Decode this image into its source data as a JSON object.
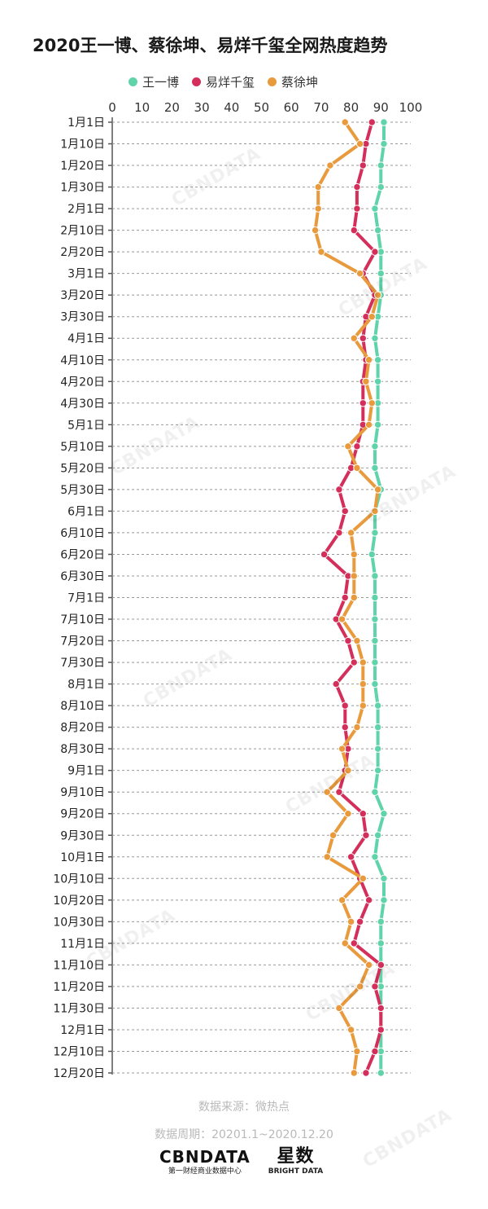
{
  "colors": {
    "wang": "#5fd3a9",
    "yi": "#d42e5b",
    "cai": "#e89a3c"
  },
  "legend": [
    {
      "label": "王一博",
      "color": "#5fd3a9"
    },
    {
      "label": "易烊千玺",
      "color": "#d42e5b"
    },
    {
      "label": "蔡徐坤",
      "color": "#e89a3c"
    }
  ],
  "chart_data": {
    "type": "line",
    "title": "2020王一博、蔡徐坤、易烊千玺全网热度趋势",
    "orientation": "horizontal",
    "xlim": [
      0,
      100
    ],
    "xticks": [
      0,
      10,
      20,
      30,
      40,
      50,
      60,
      70,
      80,
      90,
      100
    ],
    "grid": true,
    "legend_position": "top",
    "categories": [
      "1月1日",
      "1月10日",
      "1月20日",
      "1月30日",
      "2月1日",
      "2月10日",
      "2月20日",
      "3月1日",
      "3月20日",
      "3月30日",
      "4月1日",
      "4月10日",
      "4月20日",
      "4月30日",
      "5月1日",
      "5月10日",
      "5月20日",
      "5月30日",
      "6月1日",
      "6月10日",
      "6月20日",
      "6月30日",
      "7月1日",
      "7月10日",
      "7月20日",
      "7月30日",
      "8月1日",
      "8月10日",
      "8月20日",
      "8月30日",
      "9月1日",
      "9月10日",
      "9月20日",
      "9月30日",
      "10月1日",
      "10月10日",
      "10月20日",
      "10月30日",
      "11月1日",
      "11月10日",
      "11月20日",
      "11月30日",
      "12月1日",
      "12月10日",
      "12月20日"
    ],
    "series": [
      {
        "name": "王一博",
        "color": "#5fd3a9",
        "values": [
          91,
          91,
          90,
          90,
          88,
          89,
          90,
          90,
          90,
          89,
          88,
          89,
          89,
          89,
          89,
          88,
          88,
          90,
          88,
          88,
          87,
          88,
          88,
          88,
          88,
          88,
          88,
          89,
          89,
          89,
          89,
          88,
          91,
          89,
          88,
          91,
          91,
          90,
          90,
          90,
          90,
          90,
          90,
          90,
          90
        ]
      },
      {
        "name": "易烊千玺",
        "color": "#d42e5b",
        "values": [
          87,
          85,
          84,
          82,
          82,
          81,
          88,
          84,
          88,
          85,
          84,
          85,
          84,
          84,
          84,
          82,
          80,
          76,
          78,
          76,
          71,
          79,
          78,
          75,
          79,
          81,
          75,
          78,
          78,
          79,
          78,
          76,
          84,
          85,
          80,
          83,
          86,
          83,
          81,
          90,
          88,
          90,
          90,
          88,
          85
        ]
      },
      {
        "name": "蔡徐坤",
        "color": "#e89a3c",
        "values": [
          78,
          83,
          73,
          69,
          69,
          68,
          70,
          83,
          89,
          87,
          81,
          86,
          85,
          87,
          86,
          79,
          82,
          89,
          88,
          80,
          81,
          81,
          81,
          77,
          82,
          84,
          84,
          84,
          82,
          77,
          79,
          72,
          79,
          74,
          72,
          84,
          77,
          80,
          78,
          86,
          83,
          76,
          80,
          82,
          81
        ]
      }
    ]
  },
  "footer": {
    "source": "数据来源：微热点",
    "period": "数据周期：20201.1~2020.12.20"
  },
  "logos": {
    "cbn_main": "CBNDATA",
    "cbn_sub": "第一财经商业数据中心",
    "star_main": "星数",
    "star_sub": "BRIGHT DATA"
  }
}
